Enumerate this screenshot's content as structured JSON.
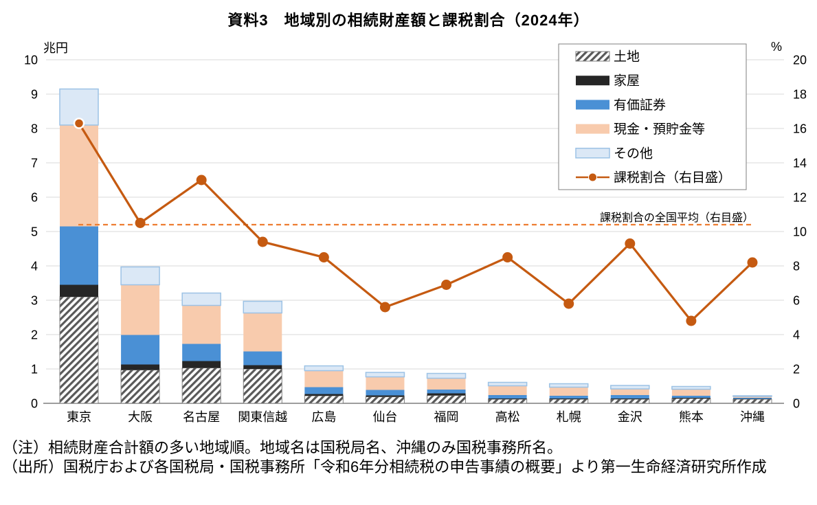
{
  "title": "資料3　地域別の相続財産額と課税割合（2024年）",
  "notes": {
    "note1": "（注）相続財産合計額の多い地域順。地域名は国税局名、沖縄のみ国税事務所名。",
    "note2": "（出所）国税庁および各国税局・国税事務所「令和6年分相続税の申告事績の概要」より第一生命経済研究所作成"
  },
  "colors": {
    "land_stripe": "#595959",
    "land_border": "#7F7F7F",
    "house": "#262626",
    "securities": "#4A90D5",
    "cash": "#F8CBAD",
    "other_fill": "#DBE8F6",
    "other_border": "#9CC2E5",
    "line": "#C55A11",
    "average_line": "#ED7D31",
    "grid": "#D9D9D9",
    "axis": "#7F7F7F"
  },
  "chart_data": {
    "type": "bar",
    "subtype": "stacked-bars-with-line-overlay",
    "categories": [
      "東京",
      "大阪",
      "名古屋",
      "関東信越",
      "広島",
      "仙台",
      "福岡",
      "高松",
      "札幌",
      "金沢",
      "熊本",
      "沖縄"
    ],
    "series": [
      {
        "name": "土地",
        "key": "land",
        "values": [
          3.1,
          0.97,
          1.03,
          1.0,
          0.22,
          0.19,
          0.23,
          0.12,
          0.12,
          0.12,
          0.14,
          0.12
        ]
      },
      {
        "name": "家屋",
        "key": "house",
        "values": [
          0.35,
          0.16,
          0.2,
          0.11,
          0.05,
          0.04,
          0.06,
          0.02,
          0.02,
          0.02,
          0.02,
          0.01
        ]
      },
      {
        "name": "有価証券",
        "key": "securities",
        "values": [
          1.7,
          0.86,
          0.5,
          0.4,
          0.2,
          0.16,
          0.11,
          0.1,
          0.08,
          0.1,
          0.06,
          0.03
        ]
      },
      {
        "name": "現金・預貯金等",
        "key": "cash",
        "values": [
          2.95,
          1.46,
          1.12,
          1.12,
          0.48,
          0.38,
          0.33,
          0.27,
          0.25,
          0.18,
          0.19,
          0.04
        ]
      },
      {
        "name": "その他",
        "key": "other",
        "values": [
          1.05,
          0.52,
          0.36,
          0.34,
          0.14,
          0.13,
          0.14,
          0.1,
          0.1,
          0.1,
          0.08,
          0.02
        ]
      }
    ],
    "line_series": {
      "name": "課税割合（右目盛）",
      "key": "tax-ratio",
      "axis": "right",
      "values": [
        16.3,
        10.5,
        13.0,
        9.4,
        8.5,
        5.6,
        6.9,
        8.5,
        5.8,
        9.3,
        4.8,
        8.2
      ]
    },
    "average_line": {
      "label": "課税割合の全国平均（右目盛）",
      "value": 10.4,
      "axis": "right"
    },
    "left_axis": {
      "unit": "兆円",
      "min": 0,
      "max": 10,
      "step": 1
    },
    "right_axis": {
      "unit": "%",
      "min": 0,
      "max": 20,
      "step": 2
    },
    "grid": true,
    "legend_position": "top-right"
  }
}
